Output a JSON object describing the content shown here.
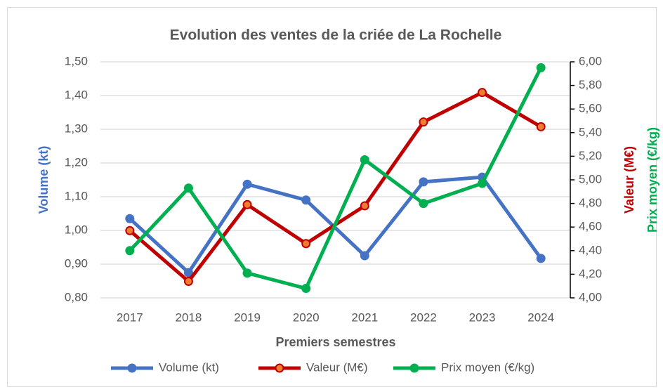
{
  "chart_data": {
    "type": "line",
    "title": "Evolution des ventes de la criée de La Rochelle",
    "xlabel": "Premiers semestres",
    "ylabel": "Volume (kt)",
    "y2labels": [
      "Valeur (M€)",
      "Prix moyen (€/kg)"
    ],
    "categories": [
      "2017",
      "2018",
      "2019",
      "2020",
      "2021",
      "2022",
      "2023",
      "2024"
    ],
    "series": [
      {
        "name": "Volume (kt)",
        "color": "#4472c4",
        "values": [
          1.035,
          0.875,
          1.137,
          1.09,
          0.925,
          1.144,
          1.158,
          0.917
        ]
      },
      {
        "name": "Valeur (M€)",
        "color": "#c00000",
        "marker_color": "#ed7d31",
        "axis": "y2",
        "values": [
          4.57,
          4.14,
          4.79,
          4.46,
          4.78,
          5.49,
          5.74,
          5.45
        ]
      },
      {
        "name": "Prix moyen (€/kg)",
        "color": "#00b050",
        "axis": "y2",
        "values": [
          4.4,
          4.93,
          4.21,
          4.08,
          5.17,
          4.8,
          4.97,
          5.95
        ]
      }
    ],
    "ylim": [
      0.8,
      1.5
    ],
    "yticks": [
      {
        "value": 0.8,
        "label": "0,80"
      },
      {
        "value": 0.9,
        "label": "0,90"
      },
      {
        "value": 1.0,
        "label": "1,00"
      },
      {
        "value": 1.1,
        "label": "1,10"
      },
      {
        "value": 1.2,
        "label": "1,20"
      },
      {
        "value": 1.3,
        "label": "1,30"
      },
      {
        "value": 1.4,
        "label": "1,40"
      },
      {
        "value": 1.5,
        "label": "1,50"
      }
    ],
    "y2lim": [
      4.0,
      6.0
    ],
    "y2ticks": [
      {
        "value": 4.0,
        "label": "4,00"
      },
      {
        "value": 4.2,
        "label": "4,20"
      },
      {
        "value": 4.4,
        "label": "4,40"
      },
      {
        "value": 4.6,
        "label": "4,60"
      },
      {
        "value": 4.8,
        "label": "4,80"
      },
      {
        "value": 5.0,
        "label": "5,00"
      },
      {
        "value": 5.2,
        "label": "5,20"
      },
      {
        "value": 5.4,
        "label": "5,40"
      },
      {
        "value": 5.6,
        "label": "5,60"
      },
      {
        "value": 5.8,
        "label": "5,80"
      },
      {
        "value": 6.0,
        "label": "6,00"
      }
    ],
    "grid": true
  }
}
